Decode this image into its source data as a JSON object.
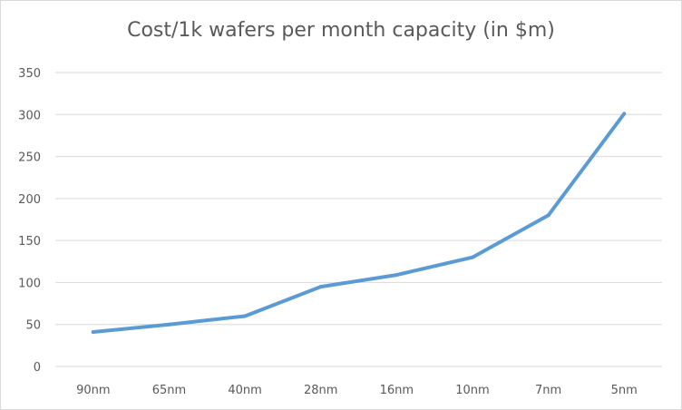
{
  "chart_data": {
    "type": "line",
    "title": "Cost/1k wafers per month capacity (in $m)",
    "xlabel": "",
    "ylabel": "",
    "categories": [
      "90nm",
      "65nm",
      "40nm",
      "28nm",
      "16nm",
      "10nm",
      "7nm",
      "5nm"
    ],
    "series": [
      {
        "values": [
          41,
          50,
          60,
          95,
          109,
          130,
          180,
          301
        ]
      }
    ],
    "ylim": [
      0,
      350
    ],
    "yticks": [
      0,
      50,
      100,
      150,
      200,
      250,
      300,
      350
    ],
    "grid": true,
    "legend": "none",
    "colors": {
      "line": "#5b9bd5",
      "grid": "#d9d9d9",
      "text": "#595959"
    }
  }
}
